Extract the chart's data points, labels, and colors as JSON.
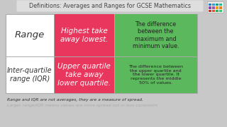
{
  "title": "Definitions: Averages and Ranges for GCSE Mathematics",
  "title_bg": "#dedede",
  "bg_color": "#c8c8c8",
  "table_bg": "#ffffff",
  "red_color": "#e8365d",
  "green_color": "#5cb85c",
  "row1_col1": "Range",
  "row1_col2": "Highest take\naway lowest.",
  "row1_col3": "The difference\nbetween the\nmaximum and\nminimum value.",
  "row2_col1": "Inter-quartile\nrange (IQR)",
  "row2_col2": "Upper quartile\ntake away\nlower quartile.",
  "row2_col3": "The difference between\nthe upper quartile and\nthe lower quartile. It\nrepresents the middle\n50% of values.",
  "footer1": "Range and IQR are not averages, they are a measure of spread.",
  "footer2": "Larger range/IQR means values are more spread out or less consistent",
  "footer1_color": "#333333",
  "footer2_color": "#aaaaaa",
  "title_fontsize": 5.8,
  "col1_row1_fontsize": 9.5,
  "col1_row2_fontsize": 7.0,
  "col2_fontsize": 7.5,
  "col3_row1_fontsize": 5.8,
  "col3_row2_fontsize": 4.6,
  "footer_fontsize": 4.3,
  "grid_colors": [
    "#c0392b",
    "#e74c3c",
    "#27ae60",
    "#2ecc71",
    "#8e44ad",
    "#9b59b6",
    "#f39c12",
    "#e67e22",
    "#2980b9",
    "#3498db",
    "#16a085",
    "#1abc9c"
  ]
}
